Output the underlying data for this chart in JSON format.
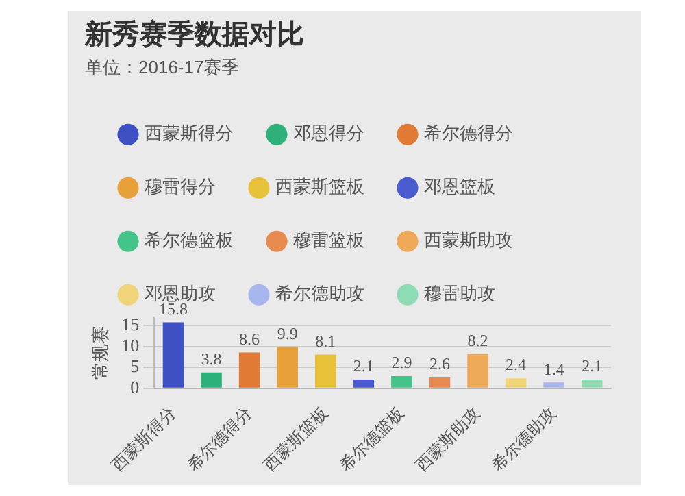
{
  "chart_data": {
    "type": "bar",
    "title": "新秀赛季数据对比",
    "subtitle": "单位：2016-17赛季",
    "ylabel": "常规赛",
    "categories": [
      "西蒙斯得分",
      null,
      "希尔德得分",
      null,
      "西蒙斯篮板",
      null,
      "希尔德篮板",
      null,
      "西蒙斯助攻",
      null,
      "希尔德助攻",
      null
    ],
    "series": [
      {
        "name": "西蒙斯得分",
        "color": "#3f4fc4",
        "values": [
          15.8,
          null,
          null,
          null,
          null,
          null,
          null,
          null,
          null,
          null,
          null,
          null
        ]
      },
      {
        "name": "邓恩得分",
        "color": "#2eb07a",
        "values": [
          null,
          3.8,
          null,
          null,
          null,
          null,
          null,
          null,
          null,
          null,
          null,
          null
        ]
      },
      {
        "name": "希尔德得分",
        "color": "#e07a35",
        "values": [
          null,
          null,
          8.6,
          null,
          null,
          null,
          null,
          null,
          null,
          null,
          null,
          null
        ]
      },
      {
        "name": "穆雷得分",
        "color": "#e8a03a",
        "values": [
          null,
          null,
          null,
          9.9,
          null,
          null,
          null,
          null,
          null,
          null,
          null,
          null
        ]
      },
      {
        "name": "西蒙斯篮板",
        "color": "#e8c13a",
        "values": [
          null,
          null,
          null,
          null,
          8.1,
          null,
          null,
          null,
          null,
          null,
          null,
          null
        ]
      },
      {
        "name": "邓恩篮板",
        "color": "#4a5acf",
        "values": [
          null,
          null,
          null,
          null,
          null,
          2.1,
          null,
          null,
          null,
          null,
          null,
          null
        ]
      },
      {
        "name": "希尔德篮板",
        "color": "#45c48a",
        "values": [
          null,
          null,
          null,
          null,
          null,
          null,
          2.9,
          null,
          null,
          null,
          null,
          null
        ]
      },
      {
        "name": "穆雷篮板",
        "color": "#e68a50",
        "values": [
          null,
          null,
          null,
          null,
          null,
          null,
          null,
          2.6,
          null,
          null,
          null,
          null
        ]
      },
      {
        "name": "西蒙斯助攻",
        "color": "#eeaa58",
        "values": [
          null,
          null,
          null,
          null,
          null,
          null,
          null,
          null,
          8.2,
          null,
          null,
          null
        ]
      },
      {
        "name": "邓恩助攻",
        "color": "#f0d47a",
        "values": [
          null,
          null,
          null,
          null,
          null,
          null,
          null,
          null,
          null,
          2.4,
          null,
          null
        ]
      },
      {
        "name": "希尔德助攻",
        "color": "#a8b6ee",
        "values": [
          null,
          null,
          null,
          null,
          null,
          null,
          null,
          null,
          null,
          null,
          1.4,
          null
        ]
      },
      {
        "name": "穆雷助攻",
        "color": "#8edcb4",
        "values": [
          null,
          null,
          null,
          null,
          null,
          null,
          null,
          null,
          null,
          null,
          null,
          2.1
        ]
      }
    ],
    "ylim": [
      0,
      17
    ],
    "yticks": [
      0,
      5,
      10,
      15
    ],
    "grid": "y",
    "legend": "top left",
    "data_labels": true
  }
}
